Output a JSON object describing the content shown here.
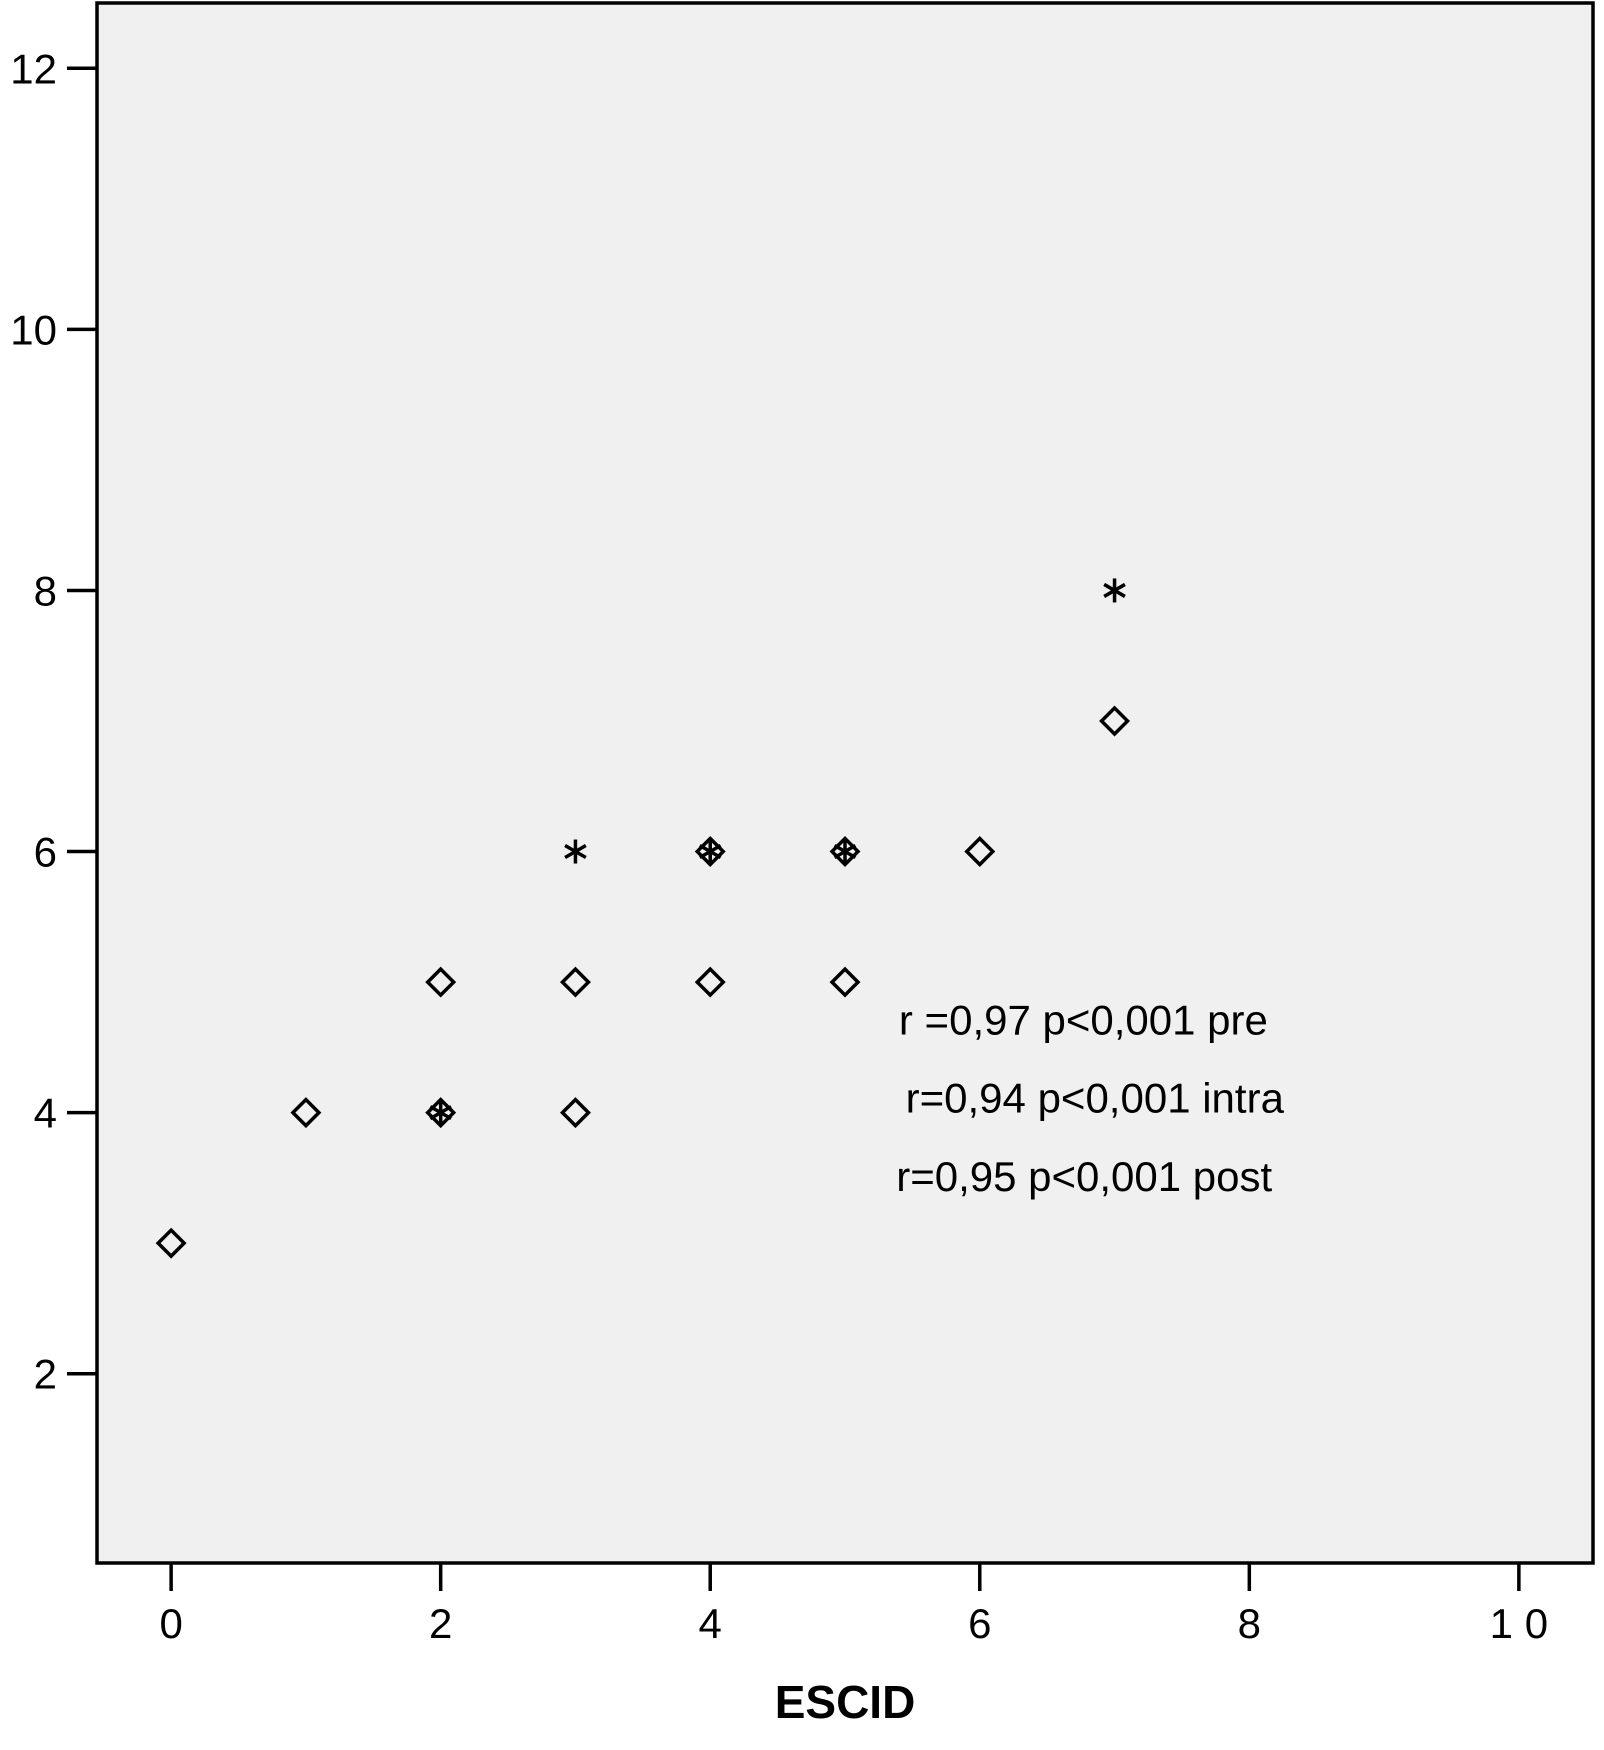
{
  "chart_data": {
    "type": "scatter",
    "title": "",
    "xlabel": "ESCID",
    "ylabel": "",
    "xlim": [
      -0.55,
      10.55
    ],
    "ylim": [
      0.55,
      12.5
    ],
    "xticks": [
      0,
      2,
      4,
      6,
      8,
      10
    ],
    "xtick_labels": [
      "0",
      "2",
      "4",
      "6",
      "8",
      "1 0"
    ],
    "yticks": [
      2,
      4,
      6,
      8,
      10,
      12
    ],
    "ytick_labels": [
      "2",
      "4",
      "6",
      "8",
      "10",
      "12"
    ],
    "grid": false,
    "plot_background": "#f0f0f0",
    "marker_color": "#000000",
    "series": [
      {
        "marker": "diamond",
        "points": [
          {
            "x": 0,
            "y": 3
          },
          {
            "x": 1,
            "y": 4
          },
          {
            "x": 2,
            "y": 4
          },
          {
            "x": 3,
            "y": 4
          },
          {
            "x": 2,
            "y": 5
          },
          {
            "x": 3,
            "y": 5
          },
          {
            "x": 4,
            "y": 5
          },
          {
            "x": 5,
            "y": 5
          },
          {
            "x": 4,
            "y": 6
          },
          {
            "x": 5,
            "y": 6
          },
          {
            "x": 6,
            "y": 6
          },
          {
            "x": 7,
            "y": 7
          }
        ]
      },
      {
        "marker": "asterisk",
        "points": [
          {
            "x": 3,
            "y": 6
          },
          {
            "x": 7,
            "y": 8
          },
          {
            "x": 2,
            "y": 4
          },
          {
            "x": 4,
            "y": 6
          },
          {
            "x": 5,
            "y": 6
          }
        ]
      }
    ],
    "annotations": [
      {
        "text": "r =0,97 p<0,001 pre",
        "x": 5.4,
        "y": 4.6
      },
      {
        "text": "r=0,94 p<0,001 intra",
        "x": 5.45,
        "y": 4.0
      },
      {
        "text": "r=0,95 p<0,001 post",
        "x": 5.38,
        "y": 3.4
      }
    ]
  }
}
